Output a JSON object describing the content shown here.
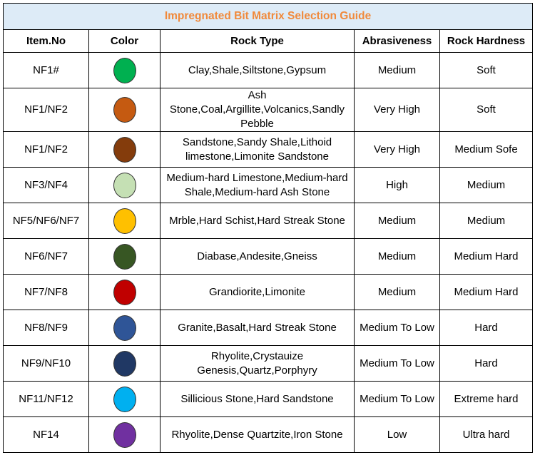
{
  "title": "Impregnated Bit Matrix Selection Guide",
  "columns": [
    "Item.No",
    "Color",
    "Rock Type",
    "Abrasiveness",
    "Rock Hardness"
  ],
  "rows": [
    {
      "item": "NF1#",
      "color": "#00b050",
      "rock_type": "Clay,Shale,Siltstone,Gypsum",
      "abrasiveness": "Medium",
      "hardness": "Soft"
    },
    {
      "item": "NF1/NF2",
      "color": "#c55a11",
      "rock_type": "Ash\nStone,Coal,Argillite,Volcanics,Sandly\nPebble",
      "abrasiveness": "Very High",
      "hardness": "Soft"
    },
    {
      "item": "NF1/NF2",
      "color": "#843c0c",
      "rock_type": "Sandstone,Sandy Shale,Lithoid\nlimestone,Limonite Sandstone",
      "abrasiveness": "Very High",
      "hardness": "Medium Sofe"
    },
    {
      "item": "NF3/NF4",
      "color": "#c5e0b4",
      "rock_type": "Medium-hard Limestone,Medium-hard\nShale,Medium-hard Ash Stone",
      "abrasiveness": "High",
      "hardness": "Medium"
    },
    {
      "item": "NF5/NF6/NF7",
      "color": "#ffc000",
      "rock_type": "Mrble,Hard Schist,Hard Streak Stone",
      "abrasiveness": "Medium",
      "hardness": "Medium"
    },
    {
      "item": "NF6/NF7",
      "color": "#375623",
      "rock_type": "Diabase,Andesite,Gneiss",
      "abrasiveness": "Medium",
      "hardness": "Medium Hard"
    },
    {
      "item": "NF7/NF8",
      "color": "#c00000",
      "rock_type": "Grandiorite,Limonite",
      "abrasiveness": "Medium",
      "hardness": "Medium Hard"
    },
    {
      "item": "NF8/NF9",
      "color": "#2f5597",
      "rock_type": "Granite,Basalt,Hard Streak Stone",
      "abrasiveness": "Medium To Low",
      "hardness": "Hard"
    },
    {
      "item": "NF9/NF10",
      "color": "#203864",
      "rock_type": "Rhyolite,Crystauize\nGenesis,Quartz,Porphyry",
      "abrasiveness": "Medium To Low",
      "hardness": "Hard"
    },
    {
      "item": "NF11/NF12",
      "color": "#00b0f0",
      "rock_type": "Sillicious Stone,Hard Sandstone",
      "abrasiveness": "Medium To Low",
      "hardness": "Extreme hard"
    },
    {
      "item": "NF14",
      "color": "#7030a0",
      "rock_type": "Rhyolite,Dense Quartzite,Iron Stone",
      "abrasiveness": "Low",
      "hardness": "Ultra hard"
    }
  ]
}
